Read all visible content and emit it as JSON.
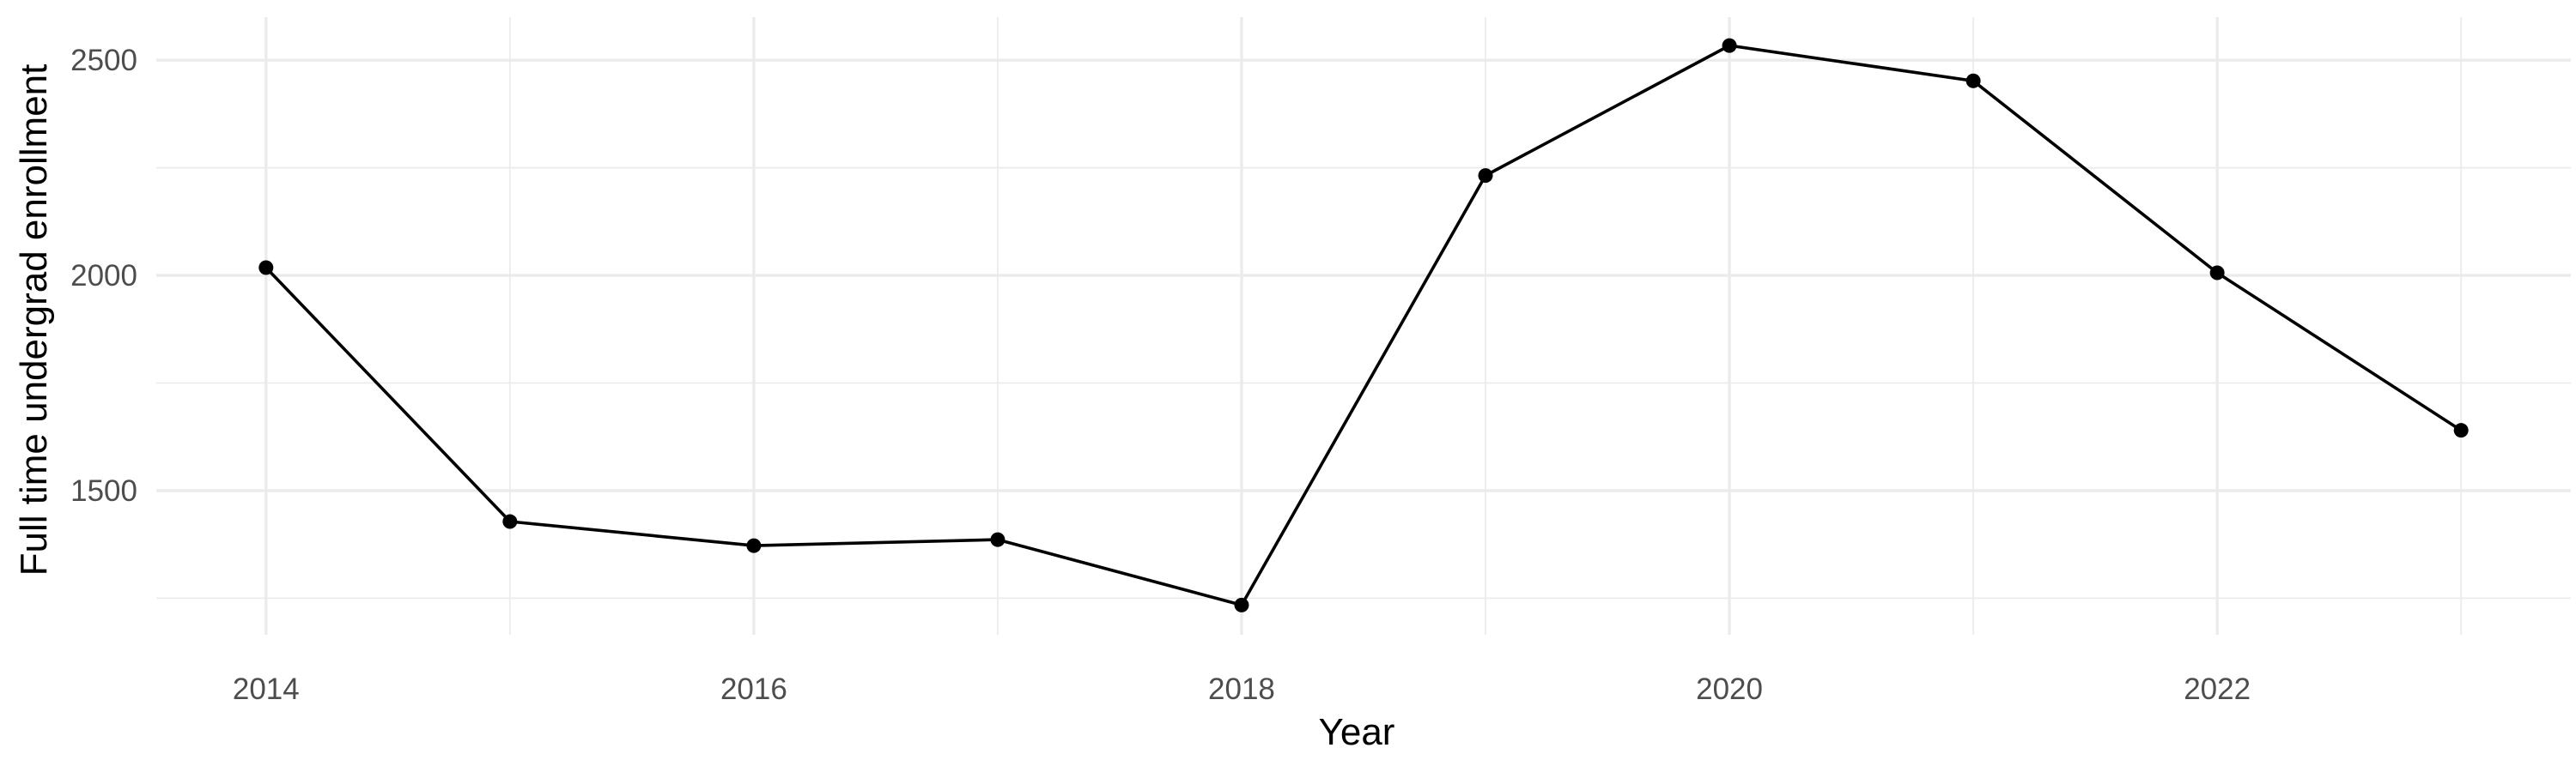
{
  "chart_data": {
    "type": "line",
    "title": "",
    "xlabel": "Year",
    "ylabel": "Full time undergrad enrollment",
    "x": [
      2014,
      2015,
      2016,
      2017,
      2018,
      2019,
      2020,
      2021,
      2022,
      2023
    ],
    "series": [
      {
        "values": [
          2018,
          1428,
          1372,
          1386,
          1234,
          2232,
          2534,
          2452,
          2006,
          1640
        ]
      }
    ],
    "xlim": [
      2013.55,
      2023.45
    ],
    "ylim": [
      1165,
      2600
    ],
    "x_ticks": [
      2014,
      2016,
      2018,
      2020,
      2022
    ],
    "y_ticks": [
      1500,
      2000,
      2500
    ],
    "x_tick_labels": [
      "2014",
      "2016",
      "2018",
      "2020",
      "2022"
    ],
    "y_tick_labels": [
      "1500",
      "2000",
      "2500"
    ],
    "x_minor_ticks": [
      2015,
      2017,
      2019,
      2021,
      2023
    ],
    "y_minor_ticks": [
      1250,
      1750,
      2250
    ],
    "grid": true,
    "legend": "none",
    "colors": {
      "line": "#000000",
      "point": "#000000",
      "grid": "#ebebeb",
      "tick_text": "#4d4d4d",
      "background": "#ffffff"
    }
  }
}
